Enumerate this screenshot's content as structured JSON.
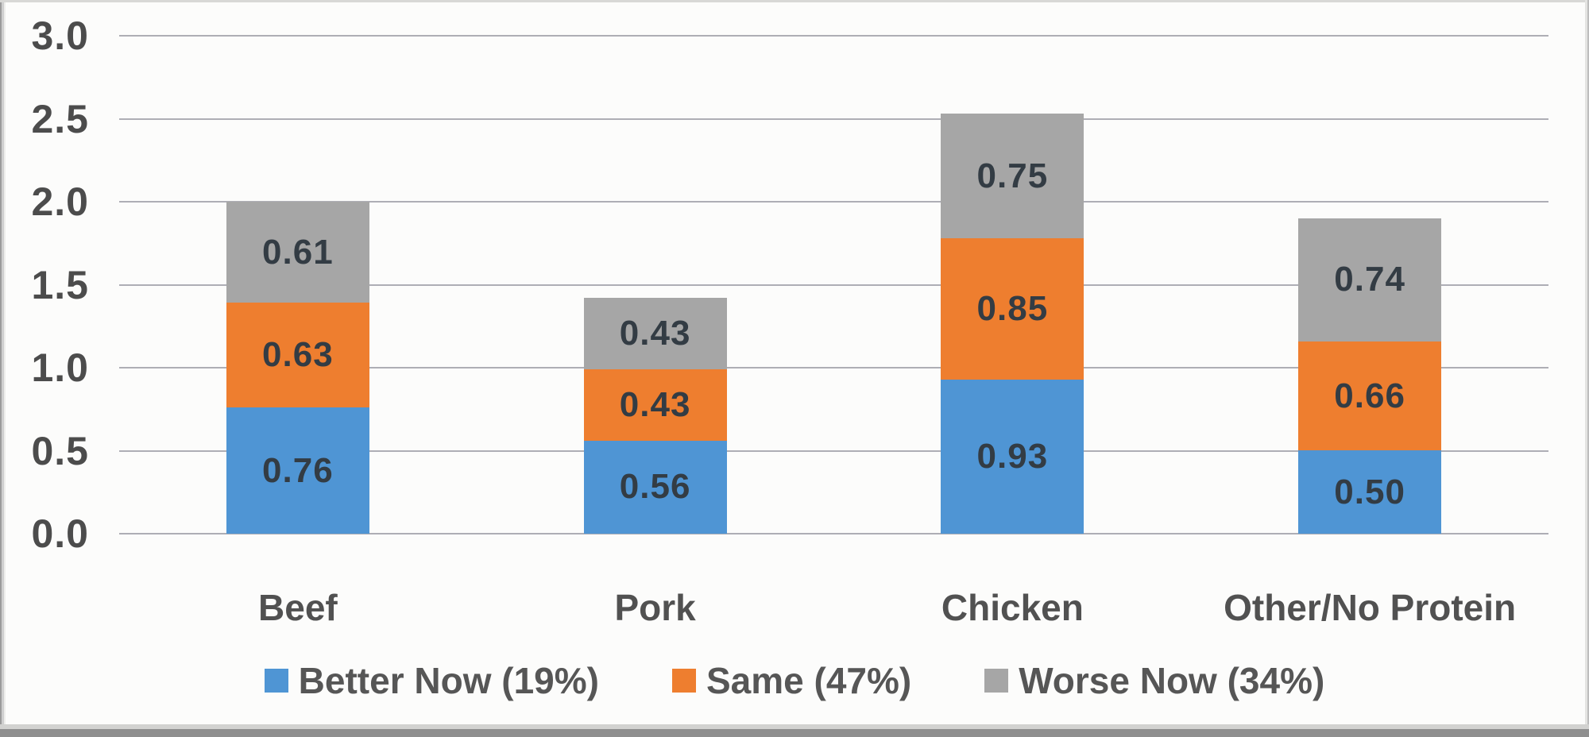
{
  "chart_data": {
    "type": "bar",
    "variant": "stacked-column",
    "title": "",
    "xlabel": "",
    "ylabel": "",
    "categories": [
      "Beef",
      "Pork",
      "Chicken",
      "Other/No Protein"
    ],
    "series": [
      {
        "name": "Better Now (19%)",
        "color": "#4f95d4",
        "values": [
          0.76,
          0.56,
          0.93,
          0.5
        ]
      },
      {
        "name": "Same (47%)",
        "color": "#ee7e2f",
        "values": [
          0.63,
          0.43,
          0.85,
          0.66
        ]
      },
      {
        "name": "Worse Now (34%)",
        "color": "#a6a6a6",
        "values": [
          0.61,
          0.43,
          0.75,
          0.74
        ]
      }
    ],
    "value_labels": [
      [
        "0.76",
        "0.56",
        "0.93",
        "0.50"
      ],
      [
        "0.63",
        "0.43",
        "0.85",
        "0.66"
      ],
      [
        "0.61",
        "0.43",
        "0.75",
        "0.74"
      ]
    ],
    "ylim": [
      0.0,
      3.0
    ],
    "ytick_labels": [
      "3.0",
      "2.5",
      "2.0",
      "1.5",
      "1.0",
      "0.5",
      "0.0"
    ],
    "grid": true,
    "legend_position": "bottom"
  },
  "colors": {
    "background": "#fcfcfb",
    "grid_line": "#aeaeb5",
    "tick_label": "#4c4c4c",
    "category_label": "#515151",
    "value_label": "#333c44",
    "legend_label": "#565656"
  }
}
